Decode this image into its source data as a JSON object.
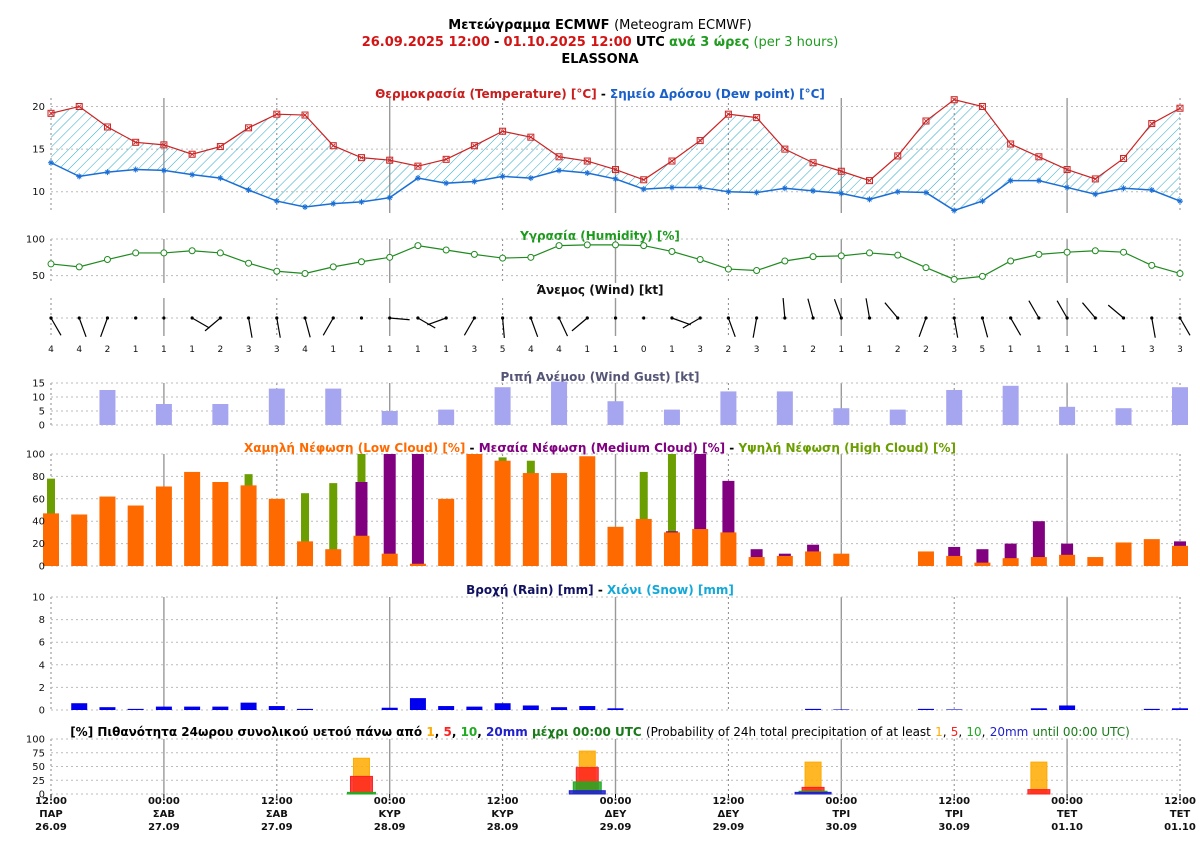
{
  "header": {
    "line1_bold": "Μετεώγραμμα ECMWF",
    "line1_normal": "(Meteogram ECMWF)",
    "range_start": "26.09.2025 12:00",
    "range_dash": "-",
    "range_end": "01.10.2025 12:00",
    "utc": "UTC",
    "interval_bold": "ανά 3 ώρες",
    "interval_normal": "(per 3 hours)",
    "location": "ELASSONA"
  },
  "titles": {
    "temp": "Θερμοκρασία (Temperature) [°C]",
    "dash": "-",
    "dew": "Σημείο Δρόσου (Dew point) [°C]",
    "humidity": "Υγρασία (Humidity) [%]",
    "wind": "Άνεμος (Wind) [kt]",
    "gust": "Ριπή Ανέμου (Wind Gust) [kt]",
    "low_cloud": "Χαμηλή Νέφωση (Low Cloud) [%]",
    "medium_cloud": "Μεσαία Νέφωση (Medium Cloud) [%]",
    "high_cloud": "Υψηλή Νέφωση (High Cloud) [%]",
    "rain": "Βροχή (Rain) [mm]",
    "snow": "Χιόνι (Snow) [mm]",
    "prob_part1": "[%] Πιθανότητα 24ωρου συνολικού υετού πάνω από",
    "prob_t1": "1",
    "prob_t2": "5",
    "prob_t3": "10",
    "prob_t4": "20mm",
    "prob_part2": "μέχρι 00:00 UTC",
    "prob_part3": "(Probability of 24h total precipitation of at least",
    "prob_part4": "until 00:00 UTC)",
    "comma": ","
  },
  "colors": {
    "temp": "#cc2222",
    "dew": "#1a6fd6",
    "hatch": "#2aa9c9",
    "humidity": "#1f8a1f",
    "gust": "#a6a6f0",
    "low_cloud": "#ff6a00",
    "medium_cloud": "#800080",
    "high_cloud": "#6b9e00",
    "rain": "#0000ee",
    "snow": "#00aadd",
    "p1": "#ffaa00",
    "p5": "#ff2020",
    "p10": "#22aa22",
    "p20": "#2020cc",
    "title_red": "#c81e1e",
    "title_blue": "#1a5fc8",
    "title_green": "#1a9a1a",
    "title_gust": "#555577",
    "title_navy": "#101060",
    "title_cyan": "#12a8d8"
  },
  "x_axis": {
    "times": [
      "12:00",
      "00:00",
      "12:00",
      "00:00",
      "12:00",
      "00:00",
      "12:00",
      "00:00",
      "12:00",
      "00:00",
      "12:00"
    ],
    "days": [
      "ΠΑΡ",
      "ΣΑΒ",
      "ΣΑΒ",
      "ΚΥΡ",
      "ΚΥΡ",
      "ΔΕΥ",
      "ΔΕΥ",
      "ΤΡΙ",
      "ΤΡΙ",
      "ΤΕΤ",
      "ΤΕΤ"
    ],
    "dates": [
      "26.09",
      "27.09",
      "27.09",
      "28.09",
      "28.09",
      "29.09",
      "29.09",
      "30.09",
      "30.09",
      "01.10",
      "01.10"
    ]
  },
  "chart_data": {
    "type": "meteogram",
    "step_hours": 3,
    "n_steps": 41,
    "temperature": [
      19.2,
      20,
      17.6,
      15.8,
      15.5,
      14.4,
      15.3,
      17.5,
      19.1,
      19,
      15.4,
      14,
      13.7,
      13,
      13.8,
      15.4,
      17.1,
      16.4,
      14.1,
      13.6,
      12.6,
      11.4,
      13.6,
      16,
      19.1,
      18.7,
      15,
      13.4,
      12.4,
      11.3,
      14.2,
      18.3,
      20.8,
      20,
      15.6,
      14.1,
      12.6,
      11.5,
      13.9,
      18,
      19.8
    ],
    "dew_point": [
      13.4,
      11.8,
      12.3,
      12.6,
      12.5,
      12,
      11.6,
      10.2,
      8.9,
      8.2,
      8.6,
      8.8,
      9.3,
      11.6,
      11,
      11.2,
      11.8,
      11.6,
      12.5,
      12.2,
      11.5,
      10.3,
      10.5,
      10.5,
      10,
      9.9,
      10.4,
      10.1,
      9.8,
      9.1,
      10,
      9.9,
      7.8,
      8.9,
      11.3,
      11.3,
      10.5,
      9.7,
      10.4,
      10.2,
      8.9
    ],
    "temp_ylim": [
      7.5,
      21
    ],
    "temp_ticks": [
      10,
      15,
      20
    ],
    "humidity": [
      66,
      62,
      72,
      81,
      81,
      84,
      81,
      67,
      56,
      53,
      62,
      69,
      75,
      91,
      85,
      79,
      74,
      75,
      91,
      92,
      92,
      91,
      83,
      72,
      59,
      57,
      70,
      76,
      77,
      81,
      78,
      61,
      45,
      49,
      70,
      79,
      82,
      84,
      82,
      64,
      53
    ],
    "humidity_ylim": [
      40,
      100
    ],
    "humidity_ticks": [
      50,
      100
    ],
    "wind_speed": [
      4,
      4,
      2,
      1,
      1,
      1,
      2,
      3,
      3,
      4,
      1,
      1,
      1,
      1,
      1,
      3,
      5,
      4,
      4,
      1,
      1,
      0,
      1,
      3,
      2,
      3,
      1,
      2,
      1,
      1,
      2,
      2,
      3,
      5,
      1,
      1,
      1,
      1,
      1,
      3,
      3
    ],
    "wind_angle": [
      150,
      160,
      200,
      0,
      0,
      120,
      230,
      170,
      170,
      165,
      210,
      0,
      95,
      120,
      250,
      210,
      175,
      160,
      155,
      230,
      0,
      0,
      110,
      240,
      160,
      190,
      355,
      345,
      340,
      350,
      320,
      200,
      170,
      165,
      150,
      330,
      330,
      320,
      310,
      170,
      150
    ],
    "wind_len": [
      20,
      20,
      20,
      0,
      0,
      20,
      20,
      20,
      20,
      20,
      20,
      0,
      20,
      20,
      20,
      20,
      20,
      20,
      20,
      20,
      0,
      0,
      20,
      20,
      20,
      20,
      20,
      20,
      20,
      20,
      20,
      20,
      20,
      20,
      20,
      20,
      20,
      20,
      20,
      20,
      20
    ],
    "wind_gust": [
      null,
      null,
      12.5,
      null,
      7.5,
      null,
      7.5,
      null,
      13,
      null,
      13,
      null,
      5,
      null,
      5.5,
      null,
      13.5,
      null,
      15.5,
      null,
      8.5,
      null,
      5.5,
      null,
      12,
      null,
      12,
      null,
      6,
      null,
      5.5,
      null,
      12.5,
      null,
      14,
      null,
      6.5,
      null,
      6,
      null,
      13.5
    ],
    "gust_ylim": [
      0,
      15
    ],
    "gust_ticks": [
      0,
      5,
      10,
      15
    ],
    "low_cloud": [
      47,
      46,
      62,
      54,
      71,
      84,
      75,
      72,
      60,
      22,
      15,
      27,
      11,
      2,
      60,
      100,
      94,
      83,
      83,
      98,
      35,
      42,
      30,
      33,
      30,
      8,
      9,
      13,
      11,
      0,
      0,
      13,
      9,
      3,
      7,
      8,
      10,
      8,
      21,
      24,
      18
    ],
    "medium_cloud": [
      0,
      0,
      0,
      0,
      0,
      0,
      0,
      0,
      0,
      0,
      14,
      75,
      100,
      100,
      0,
      0,
      0,
      0,
      0,
      0,
      0,
      0,
      31,
      100,
      76,
      15,
      11,
      19,
      0,
      0,
      0,
      0,
      17,
      15,
      20,
      40,
      20,
      0,
      0,
      0,
      22
    ],
    "high_cloud": [
      78,
      0,
      0,
      0,
      0,
      0,
      0,
      82,
      0,
      65,
      74,
      100,
      0,
      0,
      0,
      0,
      97,
      94,
      0,
      0,
      0,
      84,
      100,
      0,
      0,
      0,
      0,
      0,
      0,
      0,
      0,
      0,
      0,
      0,
      0,
      0,
      0,
      0,
      0,
      0,
      0
    ],
    "cloud_ylim": [
      0,
      100
    ],
    "cloud_ticks": [
      0,
      20,
      40,
      60,
      80,
      100
    ],
    "rain": [
      0,
      0.6,
      0.25,
      0.1,
      0.3,
      0.3,
      0.3,
      0.65,
      0.35,
      0.1,
      0,
      0,
      0.2,
      1.05,
      0.35,
      0.3,
      0.6,
      0.4,
      0.25,
      0.35,
      0.15,
      0,
      0,
      0,
      0,
      0,
      0,
      0.1,
      0.05,
      0,
      0,
      0.1,
      0.05,
      0,
      0,
      0.15,
      0.4,
      0,
      0,
      0.1,
      0.15
    ],
    "rain_ylim": [
      0,
      10
    ],
    "rain_ticks": [
      0,
      2,
      4,
      6,
      8,
      10
    ],
    "precip_probability": [
      {
        "label": "00:00 ΚΥΡ 28.09",
        "p1": 65,
        "p5": 32,
        "p10": 3,
        "p20": 0
      },
      {
        "label": "00:00 ΔΕΥ 29.09",
        "p1": 78,
        "p5": 48,
        "p10": 22,
        "p20": 6
      },
      {
        "label": "00:00 ΤΡΙ 30.09",
        "p1": 58,
        "p5": 12,
        "p10": 5,
        "p20": 3
      },
      {
        "label": "00:00 ΤΕΤ 01.10",
        "p1": 58,
        "p5": 8,
        "p10": 0,
        "p20": 0
      }
    ],
    "prob_ylim": [
      0,
      100
    ],
    "prob_ticks": [
      0,
      25,
      50,
      75,
      100
    ]
  }
}
